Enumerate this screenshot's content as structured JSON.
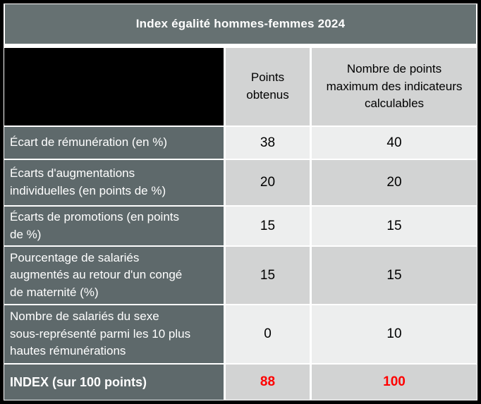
{
  "title": "Index égalité hommes-femmes 2024",
  "table": {
    "header": {
      "col1_redacted": "",
      "col2": "Points obtenus",
      "col3": "Nombre de points maximum des indicateurs calculables"
    },
    "rows": [
      {
        "label": "Écart de rémunération (en %)",
        "points": "38",
        "max": "40"
      },
      {
        "label": "Écarts d'augmentations individuelles (en points de %)",
        "points": "20",
        "max": "20"
      },
      {
        "label": "Écarts de promotions (en points de %)",
        "points": "15",
        "max": "15"
      },
      {
        "label": "Pourcentage de salariés augmentés au retour d'un congé de maternité (%)",
        "points": "15",
        "max": "15"
      },
      {
        "label": "Nombre de salariés du sexe sous-représenté parmi les 10 plus hautes rémunérations",
        "points": "0",
        "max": "10"
      }
    ],
    "total_row": {
      "label": "INDEX (sur 100 points)",
      "points": "88",
      "max": "100"
    }
  },
  "colors": {
    "title_bar": "#667172",
    "label_cell": "#5e696b",
    "row_light": "#edeeee",
    "row_dark": "#d2d3d3",
    "index_values": "#ff0000",
    "outer_border": "#000000"
  }
}
